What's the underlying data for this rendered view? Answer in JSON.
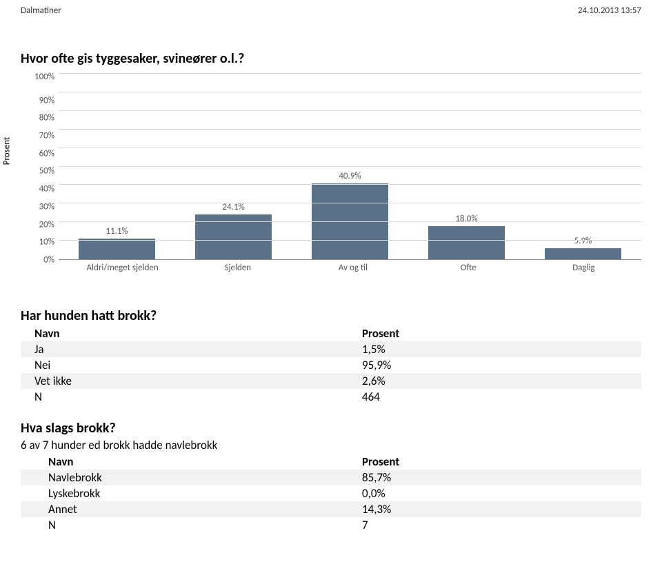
{
  "header": {
    "left": "Dalmatiner",
    "right": "24.10.2013 13:57"
  },
  "chart": {
    "type": "bar",
    "title": "Hvor ofte gis tyggesaker, svineører o.l.?",
    "ylabel": "Prosent",
    "ylim": [
      0,
      100
    ],
    "ytick_step": 10,
    "yticks": [
      "100%",
      "90%",
      "80%",
      "70%",
      "60%",
      "50%",
      "40%",
      "30%",
      "20%",
      "10%",
      "0%"
    ],
    "categories": [
      "Aldri/meget sjelden",
      "Sjelden",
      "Av og til",
      "Ofte",
      "Daglig"
    ],
    "values": [
      11.1,
      24.1,
      40.9,
      18.0,
      5.9
    ],
    "value_labels": [
      "11.1%",
      "24.1%",
      "40.9%",
      "18.0%",
      "5.9%"
    ],
    "bar_color": "#5b7188",
    "grid_color": "#d9d9d9",
    "background": "#ffffff",
    "label_fontsize": 13
  },
  "section1": {
    "title": "Har hunden hatt brokk?",
    "header_name": "Navn",
    "header_val": "Prosent",
    "rows": [
      {
        "name": "Ja",
        "val": "1,5%"
      },
      {
        "name": "Nei",
        "val": "95,9%"
      },
      {
        "name": "Vet ikke",
        "val": "2,6%"
      },
      {
        "name": "N",
        "val": "464"
      }
    ]
  },
  "section2": {
    "title": "Hva slags brokk?",
    "note": "6 av 7 hunder ed brokk hadde navlebrokk",
    "header_name": "Navn",
    "header_val": "Prosent",
    "rows": [
      {
        "name": "Navlebrokk",
        "val": "85,7%"
      },
      {
        "name": "Lyskebrokk",
        "val": "0,0%"
      },
      {
        "name": "Annet",
        "val": "14,3%"
      },
      {
        "name": "N",
        "val": "7"
      }
    ]
  }
}
